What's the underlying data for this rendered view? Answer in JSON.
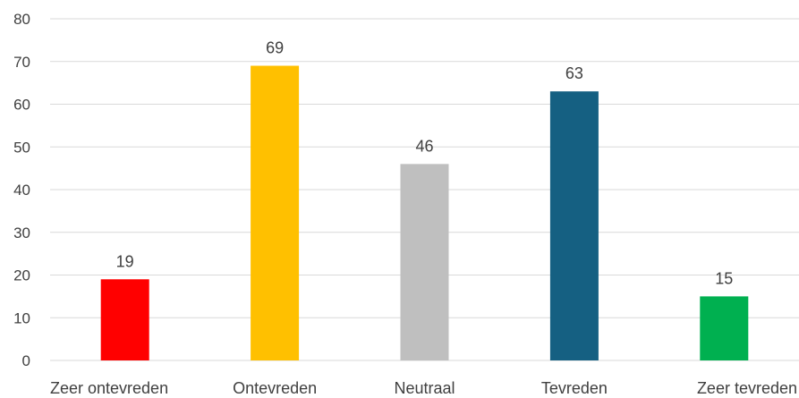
{
  "chart_data": {
    "type": "bar",
    "title": "",
    "xlabel": "",
    "ylabel": "",
    "categories": [
      "Zeer ontevreden",
      "Ontevreden",
      "Neutraal",
      "Tevreden",
      "Zeer tevreden"
    ],
    "values": [
      19,
      69,
      46,
      63,
      15
    ],
    "colors": [
      "#ff0000",
      "#ffc000",
      "#bfbfbf",
      "#156082",
      "#00b050"
    ],
    "ylim": [
      0,
      80
    ],
    "yticks": [
      0,
      10,
      20,
      30,
      40,
      50,
      60,
      70,
      80
    ],
    "grid": true,
    "legend": "none",
    "data_labels": true
  }
}
